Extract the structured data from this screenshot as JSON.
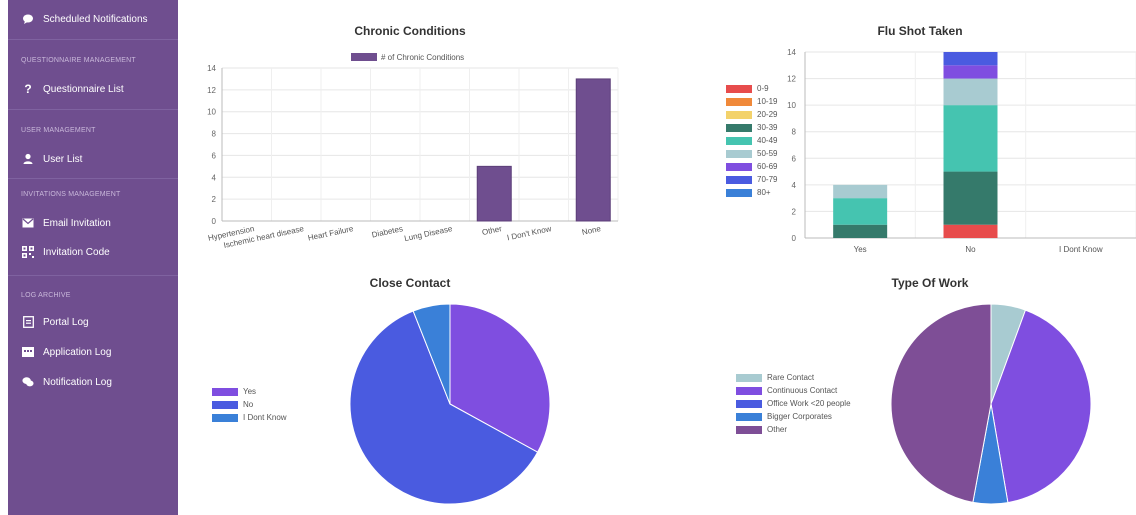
{
  "sidebar": {
    "top_item": {
      "label": "Scheduled Notifications",
      "icon": "chat-bubble-icon"
    },
    "sections": [
      {
        "title": "QUESTIONNAIRE MANAGEMENT",
        "items": [
          {
            "label": "Questionnaire List",
            "icon": "question-mark-icon"
          }
        ]
      },
      {
        "title": "USER MANAGEMENT",
        "items": [
          {
            "label": "User List",
            "icon": "user-icon"
          }
        ]
      },
      {
        "title": "INVITATIONS MANAGEMENT",
        "items": [
          {
            "label": "Email Invitation",
            "icon": "envelope-icon"
          },
          {
            "label": "Invitation Code",
            "icon": "qr-code-icon"
          }
        ]
      },
      {
        "title": "LOG ARCHIVE",
        "items": [
          {
            "label": "Portal Log",
            "icon": "document-icon"
          },
          {
            "label": "Application Log",
            "icon": "terminal-icon"
          },
          {
            "label": "Notification Log",
            "icon": "chat-bubbles-icon"
          }
        ]
      }
    ]
  },
  "chart_data": [
    {
      "type": "bar",
      "title": "Chronic Conditions",
      "categories": [
        "Hypertension",
        "Ischemic heart disease",
        "Heart Failure",
        "Diabetes",
        "Lung Disease",
        "Other",
        "I Don't Know",
        "None"
      ],
      "series": [
        {
          "name": "# of Chronic Conditions",
          "values": [
            0,
            0,
            0,
            0,
            0,
            5,
            0,
            13
          ],
          "color": "#6f4e8f"
        }
      ],
      "ylim": [
        0,
        14
      ],
      "yticks": [
        0,
        2,
        4,
        6,
        8,
        10,
        12,
        14
      ],
      "legend": "top",
      "grid": true
    },
    {
      "type": "bar",
      "stacked": true,
      "title": "Flu Shot Taken",
      "categories": [
        "Yes",
        "No",
        "I Dont Know"
      ],
      "series": [
        {
          "name": "0-9",
          "color": "#e74c4c",
          "values": [
            0,
            1,
            0
          ]
        },
        {
          "name": "10-19",
          "color": "#f0893a",
          "values": [
            0,
            0,
            0
          ]
        },
        {
          "name": "20-29",
          "color": "#f3d26b",
          "values": [
            0,
            0,
            0
          ]
        },
        {
          "name": "30-39",
          "color": "#357a6b",
          "values": [
            1,
            4,
            0
          ]
        },
        {
          "name": "40-49",
          "color": "#45c4b0",
          "values": [
            2,
            5,
            0
          ]
        },
        {
          "name": "50-59",
          "color": "#a8cbd1",
          "values": [
            1,
            2,
            0
          ]
        },
        {
          "name": "60-69",
          "color": "#7f4ee0",
          "values": [
            0,
            1,
            0
          ]
        },
        {
          "name": "70-79",
          "color": "#4a5be0",
          "values": [
            0,
            1,
            0
          ]
        },
        {
          "name": "80+",
          "color": "#3a80d8",
          "values": [
            0,
            0,
            0
          ]
        }
      ],
      "ylim": [
        0,
        14
      ],
      "yticks": [
        0,
        2,
        4,
        6,
        8,
        10,
        12,
        14
      ],
      "legend": "left",
      "grid": true
    },
    {
      "type": "pie",
      "title": "Close Contact",
      "labels": [
        "Yes",
        "No",
        "I Dont Know"
      ],
      "values": [
        33,
        61,
        6
      ],
      "colors": [
        "#7f4ee0",
        "#4a5be0",
        "#3a80d8"
      ],
      "legend": "left"
    },
    {
      "type": "pie",
      "title": "Type Of Work",
      "labels": [
        "Rare Contact",
        "Continuous Contact",
        "Office Work <20 people",
        "Bigger Corporates",
        "Other"
      ],
      "values": [
        5.6,
        41.7,
        0,
        5.6,
        47.1
      ],
      "colors": [
        "#a8cbd1",
        "#7f4ee0",
        "#4a5be0",
        "#3a80d8",
        "#7e4e96"
      ],
      "legend": "left"
    }
  ]
}
